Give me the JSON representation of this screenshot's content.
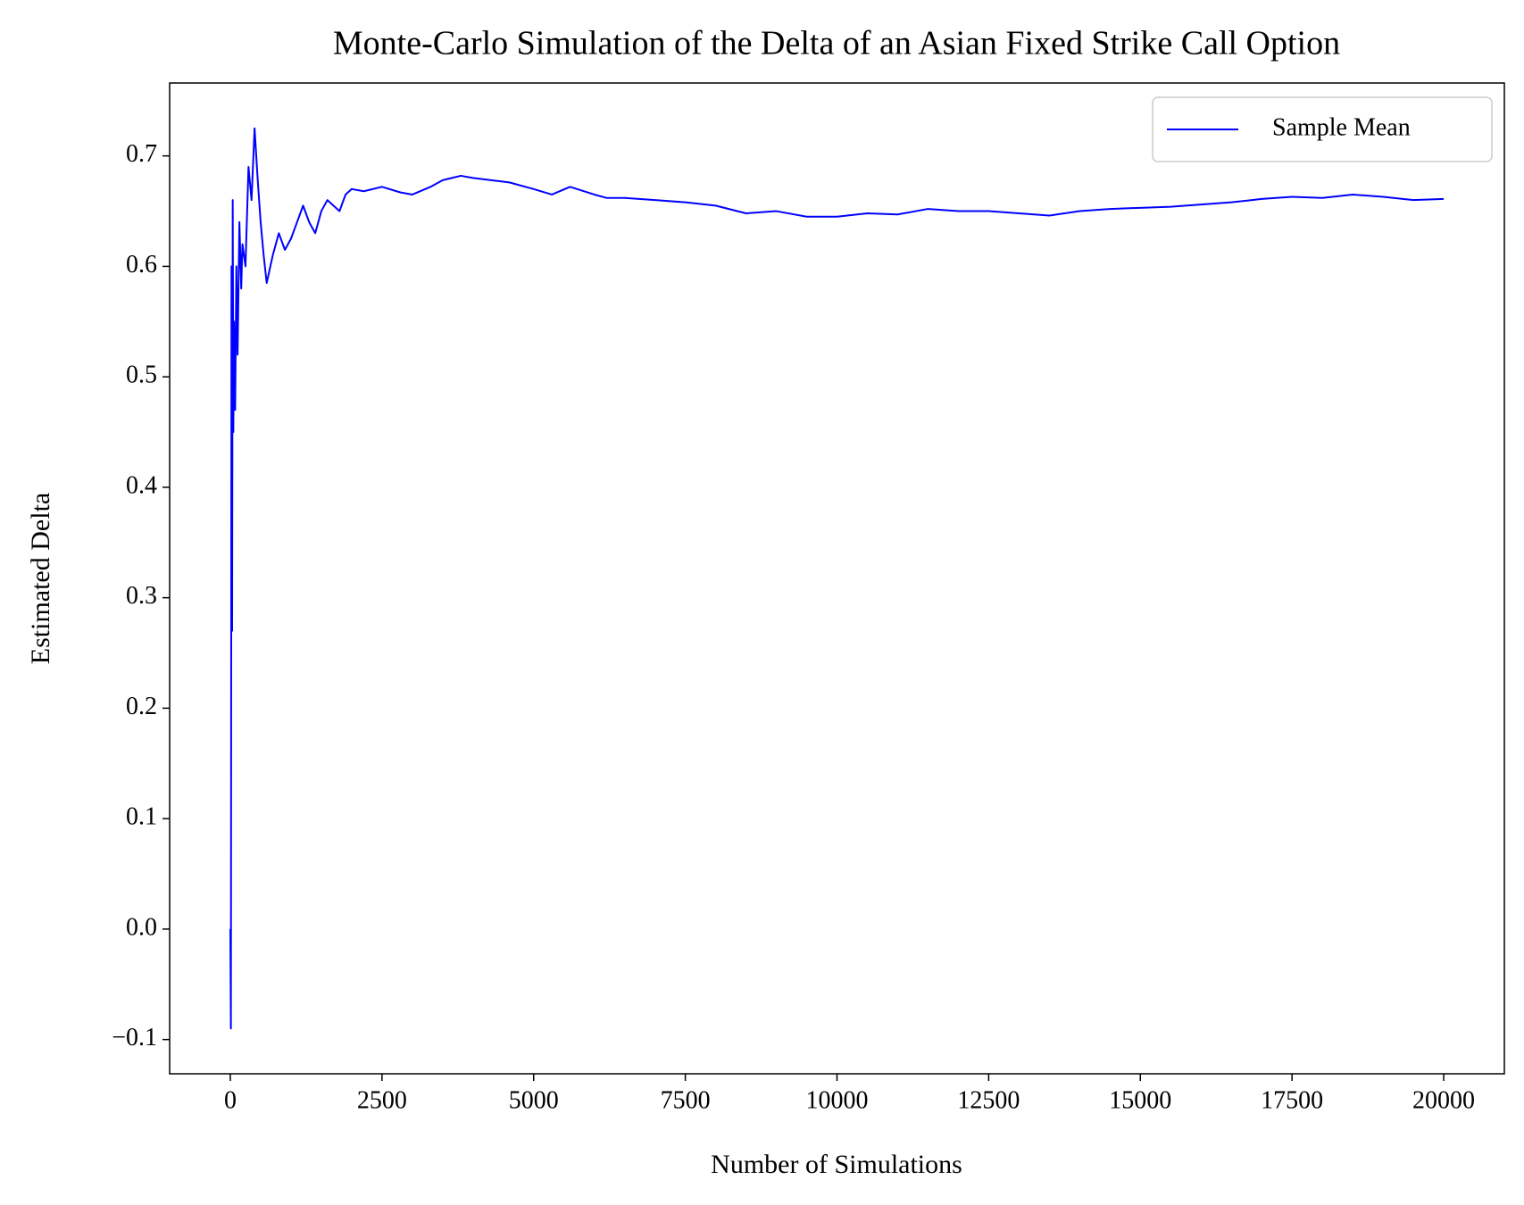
{
  "chart_data": {
    "type": "line",
    "title": "Monte-Carlo Simulation of the Delta of an Asian Fixed Strike Call Option",
    "x_label": "Number of Simulations",
    "y_label": "Estimated Delta",
    "x": [
      1,
      10,
      20,
      30,
      40,
      50,
      60,
      80,
      100,
      120,
      150,
      180,
      200,
      250,
      300,
      350,
      400,
      450,
      500,
      550,
      600,
      700,
      800,
      900,
      1000,
      1100,
      1200,
      1300,
      1400,
      1500,
      1600,
      1700,
      1800,
      1900,
      2000,
      2200,
      2500,
      2800,
      3000,
      3300,
      3500,
      3800,
      4000,
      4300,
      4600,
      5000,
      5300,
      5600,
      6000,
      6200,
      6500,
      7000,
      7500,
      8000,
      8500,
      9000,
      9500,
      10000,
      10500,
      11000,
      11500,
      12000,
      12500,
      13000,
      13500,
      14000,
      14500,
      15000,
      15500,
      16000,
      16500,
      17000,
      17500,
      18000,
      18500,
      19000,
      19500,
      20000
    ],
    "series": [
      {
        "name": "Sample Mean",
        "color": "#0000ff",
        "values": [
          0.0,
          -0.09,
          0.6,
          0.27,
          0.66,
          0.45,
          0.55,
          0.47,
          0.6,
          0.52,
          0.64,
          0.58,
          0.62,
          0.6,
          0.69,
          0.66,
          0.725,
          0.68,
          0.64,
          0.61,
          0.585,
          0.61,
          0.63,
          0.615,
          0.625,
          0.64,
          0.655,
          0.64,
          0.63,
          0.65,
          0.66,
          0.655,
          0.65,
          0.665,
          0.67,
          0.668,
          0.672,
          0.667,
          0.665,
          0.672,
          0.678,
          0.682,
          0.68,
          0.678,
          0.676,
          0.67,
          0.665,
          0.672,
          0.665,
          0.662,
          0.662,
          0.66,
          0.658,
          0.655,
          0.648,
          0.65,
          0.645,
          0.645,
          0.648,
          0.647,
          0.652,
          0.65,
          0.65,
          0.648,
          0.646,
          0.65,
          0.652,
          0.653,
          0.654,
          0.656,
          0.658,
          0.661,
          0.663,
          0.662,
          0.665,
          0.663,
          0.66,
          0.661
        ]
      }
    ],
    "xlim": [
      -1000,
      21000
    ],
    "ylim": [
      -0.131,
      0.766
    ],
    "xticks": [
      0,
      2500,
      5000,
      7500,
      10000,
      12500,
      15000,
      17500,
      20000
    ],
    "yticks": [
      {
        "value": -0.1,
        "label": "−0.1"
      },
      {
        "value": 0,
        "label": "0.0"
      },
      0.1,
      0.2,
      0.3,
      0.4,
      0.5,
      0.6,
      0.7
    ],
    "legend": "upper right"
  }
}
